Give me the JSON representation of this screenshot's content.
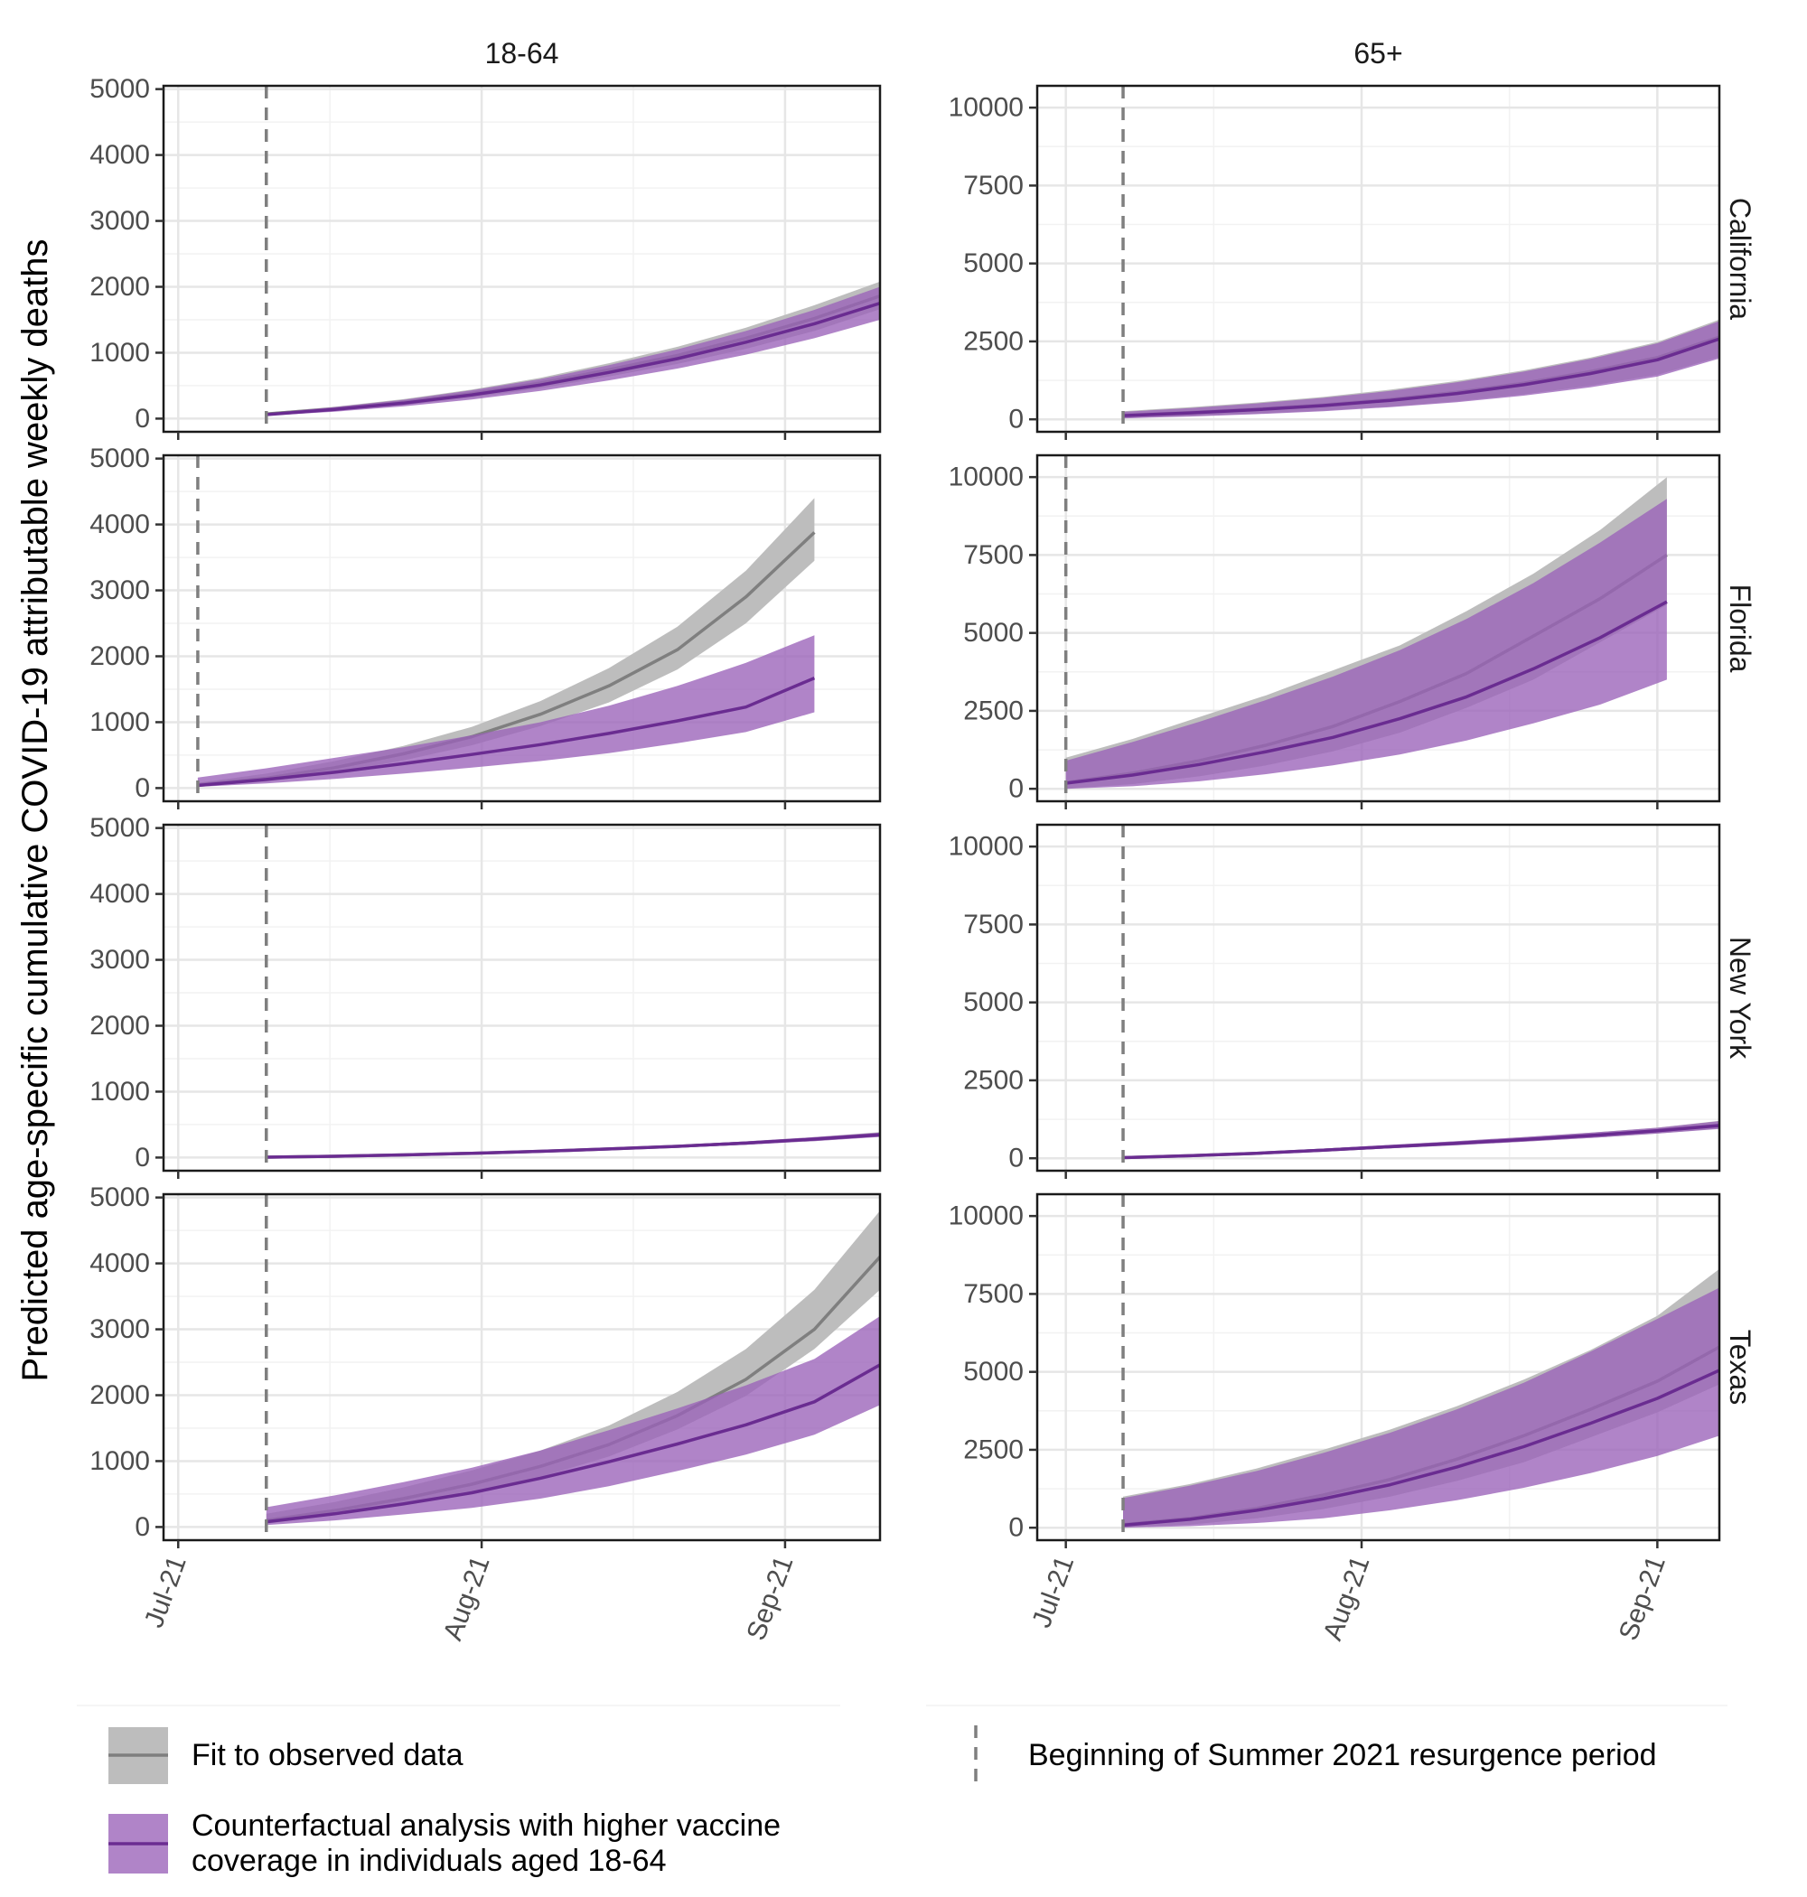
{
  "chart_data": {
    "type": "area",
    "ylabel": "Predicted age-specific cumulative COVID-19 attributable weekly deaths",
    "x_ticks": [
      "Jul-21",
      "Aug-21",
      "Sep-21"
    ],
    "x_tick_days": [
      0,
      31,
      62
    ],
    "columns": [
      {
        "label": "18-64",
        "ylim": [
          -200,
          5050
        ],
        "yticks": [
          0,
          1000,
          2000,
          3000,
          4000,
          5000
        ],
        "yminor": [
          500,
          1500,
          2500,
          3500,
          4500
        ],
        "xlim": [
          -1.5,
          71.7
        ]
      },
      {
        "label": "65+",
        "ylim": [
          -400,
          10700
        ],
        "yticks": [
          0,
          2500,
          5000,
          7500,
          10000
        ],
        "yminor": [
          1250,
          3750,
          6250,
          8750
        ],
        "xlim": [
          -3,
          68.5
        ]
      }
    ],
    "rows": [
      {
        "label": "California",
        "panels": [
          {
            "resurgence_start_day": 9,
            "fit": {
              "x": [
                9,
                16,
                23,
                30,
                37,
                44,
                51,
                58,
                65,
                71.7
              ],
              "mid": [
                70,
                150,
                250,
                380,
                540,
                740,
                960,
                1220,
                1520,
                1860
              ],
              "lo": [
                50,
                120,
                205,
                320,
                460,
                640,
                830,
                1060,
                1330,
                1660
              ],
              "hi": [
                90,
                180,
                295,
                440,
                620,
                840,
                1090,
                1380,
                1720,
                2080
              ]
            },
            "cf": {
              "x": [
                9,
                16,
                23,
                30,
                37,
                44,
                51,
                58,
                65,
                71.7
              ],
              "mid": [
                60,
                140,
                235,
                360,
                510,
                700,
                910,
                1160,
                1440,
                1750
              ],
              "lo": [
                45,
                105,
                185,
                290,
                420,
                580,
                760,
                970,
                1220,
                1500
              ],
              "hi": [
                80,
                175,
                285,
                430,
                600,
                810,
                1050,
                1330,
                1650,
                2000
              ]
            }
          },
          {
            "resurgence_start_day": 6,
            "fit": {
              "x": [
                6,
                13,
                20,
                27,
                34,
                41,
                48,
                55,
                62,
                68.5
              ],
              "mid": [
                130,
                220,
                330,
                460,
                640,
                870,
                1160,
                1530,
                1980,
                2640
              ],
              "lo": [
                40,
                100,
                180,
                280,
                410,
                580,
                800,
                1080,
                1430,
                2000
              ],
              "hi": [
                260,
                390,
                540,
                720,
                950,
                1230,
                1570,
                1980,
                2480,
                3200
              ]
            },
            "cf": {
              "x": [
                6,
                13,
                20,
                27,
                34,
                41,
                48,
                55,
                62,
                68.5
              ],
              "mid": [
                120,
                205,
                310,
                440,
                610,
                830,
                1110,
                1470,
                1910,
                2580
              ],
              "lo": [
                30,
                90,
                165,
                260,
                390,
                550,
                760,
                1030,
                1370,
                1950
              ],
              "hi": [
                240,
                360,
                510,
                690,
                910,
                1190,
                1530,
                1940,
                2440,
                3150
              ]
            }
          }
        ]
      },
      {
        "label": "Florida",
        "panels": [
          {
            "resurgence_start_day": 2,
            "fit": {
              "x": [
                2,
                9,
                16,
                23,
                30,
                37,
                44,
                51,
                58,
                65
              ],
              "mid": [
                50,
                150,
                310,
                520,
                780,
                1120,
                1550,
                2100,
                2900,
                3880
              ],
              "lo": [
                30,
                100,
                230,
                420,
                650,
                940,
                1300,
                1800,
                2500,
                3450
              ],
              "hi": [
                80,
                220,
                410,
                640,
                930,
                1320,
                1820,
                2450,
                3300,
                4400
              ]
            },
            "cf": {
              "x": [
                2,
                9,
                16,
                23,
                30,
                37,
                44,
                51,
                58,
                65
              ],
              "mid": [
                40,
                130,
                240,
                370,
                510,
                660,
                830,
                1020,
                1230,
                1670
              ],
              "lo": [
                20,
                70,
                140,
                220,
                310,
                410,
                530,
                680,
                850,
                1150
              ],
              "hi": [
                160,
                300,
                460,
                620,
                800,
                1000,
                1250,
                1550,
                1900,
                2320
              ]
            }
          },
          {
            "resurgence_start_day": 0,
            "fit": {
              "x": [
                0,
                7,
                14,
                21,
                28,
                35,
                42,
                49,
                56,
                63
              ],
              "mid": [
                200,
                500,
                900,
                1400,
                2000,
                2800,
                3700,
                4900,
                6100,
                7500
              ],
              "lo": [
                0,
                150,
                400,
                750,
                1200,
                1800,
                2600,
                3500,
                4700,
                5900
              ],
              "hi": [
                1000,
                1600,
                2300,
                3000,
                3800,
                4600,
                5700,
                6900,
                8300,
                10000
              ]
            },
            "cf": {
              "x": [
                0,
                7,
                14,
                21,
                28,
                35,
                42,
                49,
                56,
                63
              ],
              "mid": [
                180,
                440,
                780,
                1190,
                1650,
                2250,
                2950,
                3850,
                4850,
                6000
              ],
              "lo": [
                0,
                80,
                240,
                470,
                750,
                1100,
                1550,
                2100,
                2700,
                3500
              ],
              "hi": [
                900,
                1500,
                2150,
                2850,
                3600,
                4450,
                5450,
                6600,
                7900,
                9300
              ]
            }
          }
        ]
      },
      {
        "label": "New York",
        "panels": [
          {
            "resurgence_start_day": 9,
            "fit": {
              "x": [
                9,
                16,
                23,
                30,
                37,
                44,
                51,
                58,
                65,
                71.7
              ],
              "mid": [
                5,
                20,
                40,
                65,
                95,
                130,
                170,
                220,
                280,
                350
              ],
              "lo": [
                3,
                15,
                33,
                55,
                82,
                115,
                150,
                195,
                250,
                315
              ],
              "hi": [
                8,
                25,
                48,
                76,
                108,
                146,
                190,
                245,
                310,
                385
              ]
            },
            "cf": {
              "x": [
                9,
                16,
                23,
                30,
                37,
                44,
                51,
                58,
                65,
                71.7
              ],
              "mid": [
                5,
                20,
                40,
                65,
                95,
                130,
                170,
                220,
                280,
                345
              ],
              "lo": [
                3,
                15,
                33,
                55,
                82,
                115,
                150,
                195,
                250,
                312
              ],
              "hi": [
                8,
                25,
                48,
                76,
                108,
                146,
                190,
                245,
                310,
                380
              ]
            }
          },
          {
            "resurgence_start_day": 6,
            "fit": {
              "x": [
                6,
                13,
                20,
                27,
                34,
                41,
                48,
                55,
                62,
                68.5
              ],
              "mid": [
                20,
                80,
                160,
                260,
                370,
                480,
                600,
                730,
                880,
                1060
              ],
              "lo": [
                10,
                60,
                130,
                220,
                320,
                420,
                530,
                650,
                790,
                950
              ],
              "hi": [
                40,
                110,
                200,
                310,
                430,
                550,
                680,
                820,
                980,
                1200
              ]
            },
            "cf": {
              "x": [
                6,
                13,
                20,
                27,
                34,
                41,
                48,
                55,
                62,
                68.5
              ],
              "mid": [
                20,
                80,
                160,
                260,
                370,
                480,
                600,
                730,
                880,
                1050
              ],
              "lo": [
                10,
                60,
                130,
                220,
                320,
                420,
                530,
                650,
                790,
                940
              ],
              "hi": [
                40,
                110,
                200,
                310,
                430,
                550,
                680,
                820,
                980,
                1190
              ]
            }
          }
        ]
      },
      {
        "label": "Texas",
        "panels": [
          {
            "resurgence_start_day": 9,
            "fit": {
              "x": [
                9,
                16,
                23,
                30,
                37,
                44,
                51,
                58,
                65,
                71.7
              ],
              "mid": [
                100,
                250,
                430,
                650,
                920,
                1250,
                1690,
                2240,
                3000,
                4100
              ],
              "lo": [
                50,
                180,
                330,
                520,
                760,
                1070,
                1480,
                1990,
                2700,
                3600
              ],
              "hi": [
                200,
                380,
                600,
                860,
                1160,
                1540,
                2050,
                2700,
                3600,
                4800
              ]
            },
            "cf": {
              "x": [
                9,
                16,
                23,
                30,
                37,
                44,
                51,
                58,
                65,
                71.7
              ],
              "mid": [
                80,
                200,
                350,
                520,
                740,
                990,
                1260,
                1550,
                1900,
                2460
              ],
              "lo": [
                30,
                100,
                190,
                290,
                430,
                620,
                850,
                1100,
                1400,
                1850
              ],
              "hi": [
                300,
                480,
                680,
                900,
                1160,
                1470,
                1800,
                2150,
                2550,
                3200
              ]
            }
          },
          {
            "resurgence_start_day": 6,
            "fit": {
              "x": [
                6,
                13,
                20,
                27,
                34,
                41,
                48,
                55,
                62,
                68.5
              ],
              "mid": [
                100,
                300,
                620,
                1050,
                1550,
                2200,
                2950,
                3800,
                4700,
                5800
              ],
              "lo": [
                0,
                100,
                300,
                600,
                1000,
                1500,
                2100,
                2900,
                3700,
                4600
              ],
              "hi": [
                1000,
                1400,
                1900,
                2500,
                3150,
                3900,
                4750,
                5700,
                6800,
                8300
              ]
            },
            "cf": {
              "x": [
                6,
                13,
                20,
                27,
                34,
                41,
                48,
                55,
                62,
                68.5
              ],
              "mid": [
                80,
                270,
                560,
                930,
                1380,
                1950,
                2600,
                3350,
                4150,
                5050
              ],
              "lo": [
                0,
                50,
                150,
                300,
                560,
                880,
                1280,
                1750,
                2300,
                2950
              ],
              "hi": [
                950,
                1350,
                1820,
                2400,
                3050,
                3800,
                4650,
                5650,
                6700,
                7700
              ]
            }
          }
        ]
      }
    ],
    "legend": {
      "fit_label": "Fit to observed data",
      "cf_label_line1": "Counterfactual analysis with higher vaccine",
      "cf_label_line2": "coverage in individuals aged 18-64",
      "vline_label": "Beginning of Summer 2021 resurgence period"
    },
    "colors": {
      "fit_ribbon": "#bdbdbd",
      "fit_line": "#7f7f7f",
      "cf_ribbon": "#9a62b8",
      "cf_line": "#6a2c91",
      "vline": "#7f7f7f",
      "grid_major": "#e6e6e6",
      "grid_minor": "#f2f2f2"
    }
  }
}
